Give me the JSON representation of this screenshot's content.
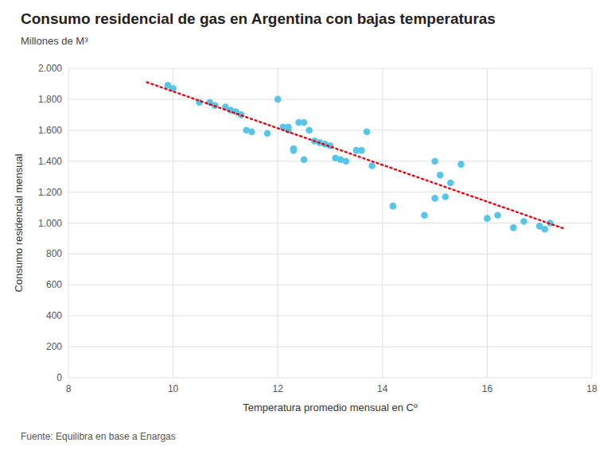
{
  "chart_data": {
    "type": "scatter",
    "title": "Consumo residencial de gas en Argentina con bajas temperaturas",
    "subtitle": "Millones de M³",
    "x_label": "Temperatura promedio mensual en Cº",
    "y_label": "Consumo residencial mensual",
    "source": "Fuente: Equilibra en base a Enargas",
    "xlim": [
      8,
      18
    ],
    "ylim": [
      0,
      2000
    ],
    "xticks": [
      8,
      10,
      12,
      14,
      16,
      18
    ],
    "yticks": [
      0,
      200,
      400,
      600,
      800,
      {
        "value": 1000,
        "label": "1.000"
      },
      {
        "value": 1200,
        "label": "1.200"
      },
      {
        "value": 1400,
        "label": "1.400"
      },
      {
        "value": 1600,
        "label": "1.600"
      },
      {
        "value": 1800,
        "label": "1.800"
      },
      {
        "value": 2000,
        "label": "2.000"
      }
    ],
    "grid": true,
    "series": [
      {
        "type": "scatter",
        "marker": "circle",
        "color": "#56C5E8",
        "x": [
          9.9,
          10.0,
          10.5,
          10.7,
          10.8,
          11.0,
          11.1,
          11.2,
          11.3,
          11.4,
          11.5,
          11.8,
          12.0,
          12.1,
          12.2,
          12.2,
          12.3,
          12.3,
          12.4,
          12.5,
          12.5,
          12.6,
          12.7,
          12.8,
          12.9,
          13.0,
          13.1,
          13.2,
          13.3,
          13.5,
          13.6,
          13.7,
          13.8,
          14.2,
          14.8,
          15.0,
          15.0,
          15.1,
          15.2,
          15.3,
          15.5,
          16.0,
          16.2,
          16.5,
          16.7,
          17.0,
          17.1,
          17.2
        ],
        "values": [
          1890,
          1870,
          1780,
          1780,
          1760,
          1750,
          1730,
          1720,
          1700,
          1600,
          1590,
          1580,
          1800,
          1620,
          1620,
          1600,
          1480,
          1470,
          1650,
          1650,
          1410,
          1600,
          1530,
          1520,
          1510,
          1500,
          1420,
          1410,
          1400,
          1470,
          1470,
          1590,
          1370,
          1110,
          1050,
          1400,
          1160,
          1310,
          1170,
          1260,
          1380,
          1030,
          1050,
          970,
          1010,
          980,
          960,
          1000
        ]
      },
      {
        "type": "line",
        "line_style": "dotted",
        "color": "#E8000D",
        "x": [
          9.5,
          17.5
        ],
        "values": [
          1910,
          960
        ]
      }
    ]
  }
}
